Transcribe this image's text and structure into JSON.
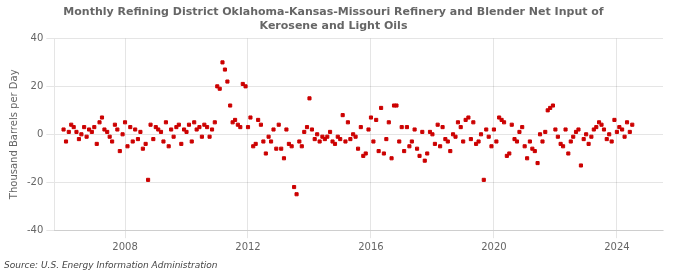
{
  "chart_data": {
    "type": "scatter",
    "title": "Monthly Refining District Oklahoma-Kansas-Missouri Refinery and Blender Net Input of\nKerosene and Light Oils",
    "ylabel": "Thousand Barrels per Day",
    "annotation": "Source: U.S. Energy Information Administration",
    "color": "#cc0000",
    "marker": "square",
    "grid": true,
    "xlim": [
      2005.7,
      2025.5
    ],
    "xticks": [
      2008,
      2012,
      2016,
      2020,
      2024
    ],
    "ylim": [
      -40,
      40
    ],
    "yticks": [
      -40,
      -20,
      0,
      20,
      40
    ],
    "x": [
      2006.0,
      2006.08,
      2006.17,
      2006.25,
      2006.33,
      2006.42,
      2006.5,
      2006.58,
      2006.67,
      2006.75,
      2006.83,
      2006.92,
      2007.0,
      2007.08,
      2007.17,
      2007.25,
      2007.33,
      2007.42,
      2007.5,
      2007.58,
      2007.67,
      2007.75,
      2007.83,
      2007.92,
      2008.0,
      2008.08,
      2008.17,
      2008.25,
      2008.33,
      2008.42,
      2008.5,
      2008.58,
      2008.67,
      2008.75,
      2008.83,
      2008.92,
      2009.0,
      2009.08,
      2009.17,
      2009.25,
      2009.33,
      2009.42,
      2009.5,
      2009.58,
      2009.67,
      2009.75,
      2009.83,
      2009.92,
      2010.0,
      2010.08,
      2010.17,
      2010.25,
      2010.33,
      2010.42,
      2010.5,
      2010.58,
      2010.67,
      2010.75,
      2010.83,
      2010.92,
      2011.0,
      2011.08,
      2011.17,
      2011.25,
      2011.33,
      2011.42,
      2011.5,
      2011.58,
      2011.67,
      2011.75,
      2011.83,
      2011.92,
      2012.0,
      2012.08,
      2012.17,
      2012.25,
      2012.33,
      2012.42,
      2012.5,
      2012.58,
      2012.67,
      2012.75,
      2012.83,
      2012.92,
      2013.0,
      2013.08,
      2013.17,
      2013.25,
      2013.33,
      2013.42,
      2013.5,
      2013.58,
      2013.67,
      2013.75,
      2013.83,
      2013.92,
      2014.0,
      2014.08,
      2014.17,
      2014.25,
      2014.33,
      2014.42,
      2014.5,
      2014.58,
      2014.67,
      2014.75,
      2014.83,
      2014.92,
      2015.0,
      2015.08,
      2015.17,
      2015.25,
      2015.33,
      2015.42,
      2015.5,
      2015.58,
      2015.67,
      2015.75,
      2015.83,
      2015.92,
      2016.0,
      2016.08,
      2016.17,
      2016.25,
      2016.33,
      2016.42,
      2016.5,
      2016.58,
      2016.67,
      2016.75,
      2016.83,
      2016.92,
      2017.0,
      2017.08,
      2017.17,
      2017.25,
      2017.33,
      2017.42,
      2017.5,
      2017.58,
      2017.67,
      2017.75,
      2017.83,
      2017.92,
      2018.0,
      2018.08,
      2018.17,
      2018.25,
      2018.33,
      2018.42,
      2018.5,
      2018.58,
      2018.67,
      2018.75,
      2018.83,
      2018.92,
      2019.0,
      2019.08,
      2019.17,
      2019.25,
      2019.33,
      2019.42,
      2019.5,
      2019.58,
      2019.67,
      2019.75,
      2019.83,
      2019.92,
      2020.0,
      2020.08,
      2020.17,
      2020.25,
      2020.33,
      2020.42,
      2020.5,
      2020.58,
      2020.67,
      2020.75,
      2020.83,
      2020.92,
      2021.0,
      2021.08,
      2021.17,
      2021.25,
      2021.33,
      2021.42,
      2021.5,
      2021.58,
      2021.67,
      2021.75,
      2021.83,
      2021.92,
      2022.0,
      2022.08,
      2022.17,
      2022.25,
      2022.33,
      2022.42,
      2022.5,
      2022.58,
      2022.67,
      2022.75,
      2022.83,
      2022.92,
      2023.0,
      2023.08,
      2023.17,
      2023.25,
      2023.33,
      2023.42,
      2023.5,
      2023.58,
      2023.67,
      2023.75,
      2023.83,
      2023.92,
      2024.0,
      2024.08,
      2024.17,
      2024.25,
      2024.33,
      2024.42,
      2024.5
    ],
    "values": [
      2.0,
      -3.0,
      1.0,
      4.0,
      3.0,
      1.0,
      -2.0,
      0.0,
      3.0,
      -1.0,
      2.0,
      1.0,
      3.0,
      -4.0,
      5.0,
      7.0,
      2.0,
      1.0,
      -1.0,
      -3.0,
      4.0,
      2.0,
      -7.0,
      0.0,
      5.0,
      -5.0,
      3.0,
      -3.0,
      2.0,
      -2.0,
      1.0,
      -6.0,
      -4.0,
      -19.0,
      4.0,
      -2.0,
      3.0,
      2.0,
      1.0,
      -3.0,
      5.0,
      -5.0,
      2.0,
      -1.0,
      3.0,
      4.0,
      -4.0,
      2.0,
      1.0,
      4.0,
      -3.0,
      5.0,
      2.0,
      3.0,
      -1.0,
      4.0,
      3.0,
      -1.0,
      2.0,
      5.0,
      20.0,
      19.0,
      30.0,
      27.0,
      22.0,
      12.0,
      5.0,
      6.0,
      4.0,
      3.0,
      21.0,
      20.0,
      3.0,
      7.0,
      -5.0,
      -4.0,
      6.0,
      4.0,
      -3.0,
      -8.0,
      -1.0,
      -3.0,
      2.0,
      -6.0,
      4.0,
      -6.0,
      -10.0,
      2.0,
      -4.0,
      -5.0,
      -22.0,
      -25.0,
      -3.0,
      -5.0,
      1.0,
      3.0,
      15.0,
      2.0,
      -2.0,
      0.0,
      -3.0,
      -1.0,
      -2.0,
      -1.0,
      1.0,
      -3.0,
      -4.0,
      -1.0,
      -2.0,
      8.0,
      -3.0,
      5.0,
      -2.0,
      0.0,
      -1.0,
      -6.0,
      3.0,
      -9.0,
      -8.0,
      2.0,
      7.0,
      -3.0,
      6.0,
      -7.0,
      11.0,
      -8.0,
      -2.0,
      5.0,
      -10.0,
      12.0,
      12.0,
      -3.0,
      3.0,
      -7.0,
      3.0,
      -5.0,
      -3.0,
      2.0,
      -6.0,
      -9.0,
      1.0,
      -11.0,
      -8.0,
      1.0,
      0.0,
      -4.0,
      4.0,
      -5.0,
      3.0,
      -2.0,
      -3.0,
      -7.0,
      0.0,
      -1.0,
      5.0,
      3.0,
      -3.0,
      6.0,
      7.0,
      -2.0,
      5.0,
      -4.0,
      -3.0,
      0.0,
      -19.0,
      2.0,
      -1.0,
      -5.0,
      2.0,
      -3.0,
      7.0,
      6.0,
      5.0,
      -9.0,
      -8.0,
      4.0,
      -2.0,
      -3.0,
      1.0,
      3.0,
      -5.0,
      -10.0,
      -3.0,
      -6.0,
      -7.0,
      -12.0,
      0.0,
      -3.0,
      1.0,
      10.0,
      11.0,
      12.0,
      2.0,
      -1.0,
      -4.0,
      -5.0,
      2.0,
      -8.0,
      -3.0,
      -1.0,
      1.0,
      2.0,
      -13.0,
      -2.0,
      0.0,
      -4.0,
      -1.0,
      2.0,
      3.0,
      5.0,
      4.0,
      2.0,
      -2.0,
      0.0,
      -3.0,
      6.0,
      1.0,
      3.0,
      2.0,
      -1.0,
      5.0,
      1.0,
      4.0
    ]
  }
}
